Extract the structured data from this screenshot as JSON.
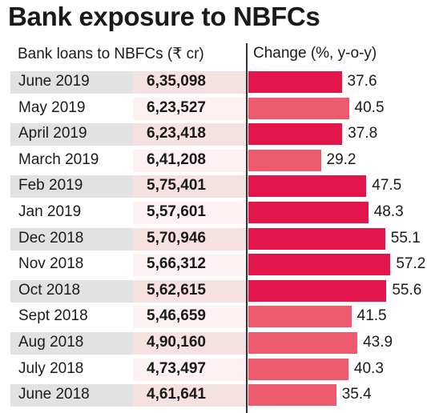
{
  "title": "Bank exposure to NBFCs",
  "header_left": "Bank loans to NBFCs (₹ cr)",
  "header_right": "Change (%, y-o-y)",
  "colors": {
    "bar_dark": "#e2164a",
    "bar_light": "#ee5a6d"
  },
  "chart_data": {
    "type": "bar",
    "title": "Bank exposure to NBFCs",
    "categories": [
      "June 2019",
      "May 2019",
      "April 2019",
      "March 2019",
      "Feb 2019",
      "Jan 2019",
      "Dec 2018",
      "Nov 2018",
      "Oct 2018",
      "Sept 2018",
      "Aug 2018",
      "July 2018",
      "June 2018"
    ],
    "loans": [
      "6,35,098",
      "6,23,527",
      "6,23,418",
      "6,41,208",
      "5,75,401",
      "5,57,601",
      "5,70,946",
      "5,66,312",
      "5,62,615",
      "5,46,659",
      "4,90,160",
      "4,73,497",
      "4,61,641"
    ],
    "values": [
      37.6,
      40.5,
      37.8,
      29.2,
      47.5,
      48.3,
      55.1,
      57.2,
      55.6,
      41.5,
      43.9,
      40.3,
      35.4
    ],
    "value_labels": [
      "37.6",
      "40.5",
      "37.8",
      "29.2",
      "47.5",
      "48.3",
      "55.1",
      "57.2",
      "55.6",
      "41.5",
      "43.9",
      "40.3",
      "35.4"
    ],
    "xlabel": "Bank loans to NBFCs (₹ cr)",
    "ylabel": "Change (%, y-o-y)"
  }
}
